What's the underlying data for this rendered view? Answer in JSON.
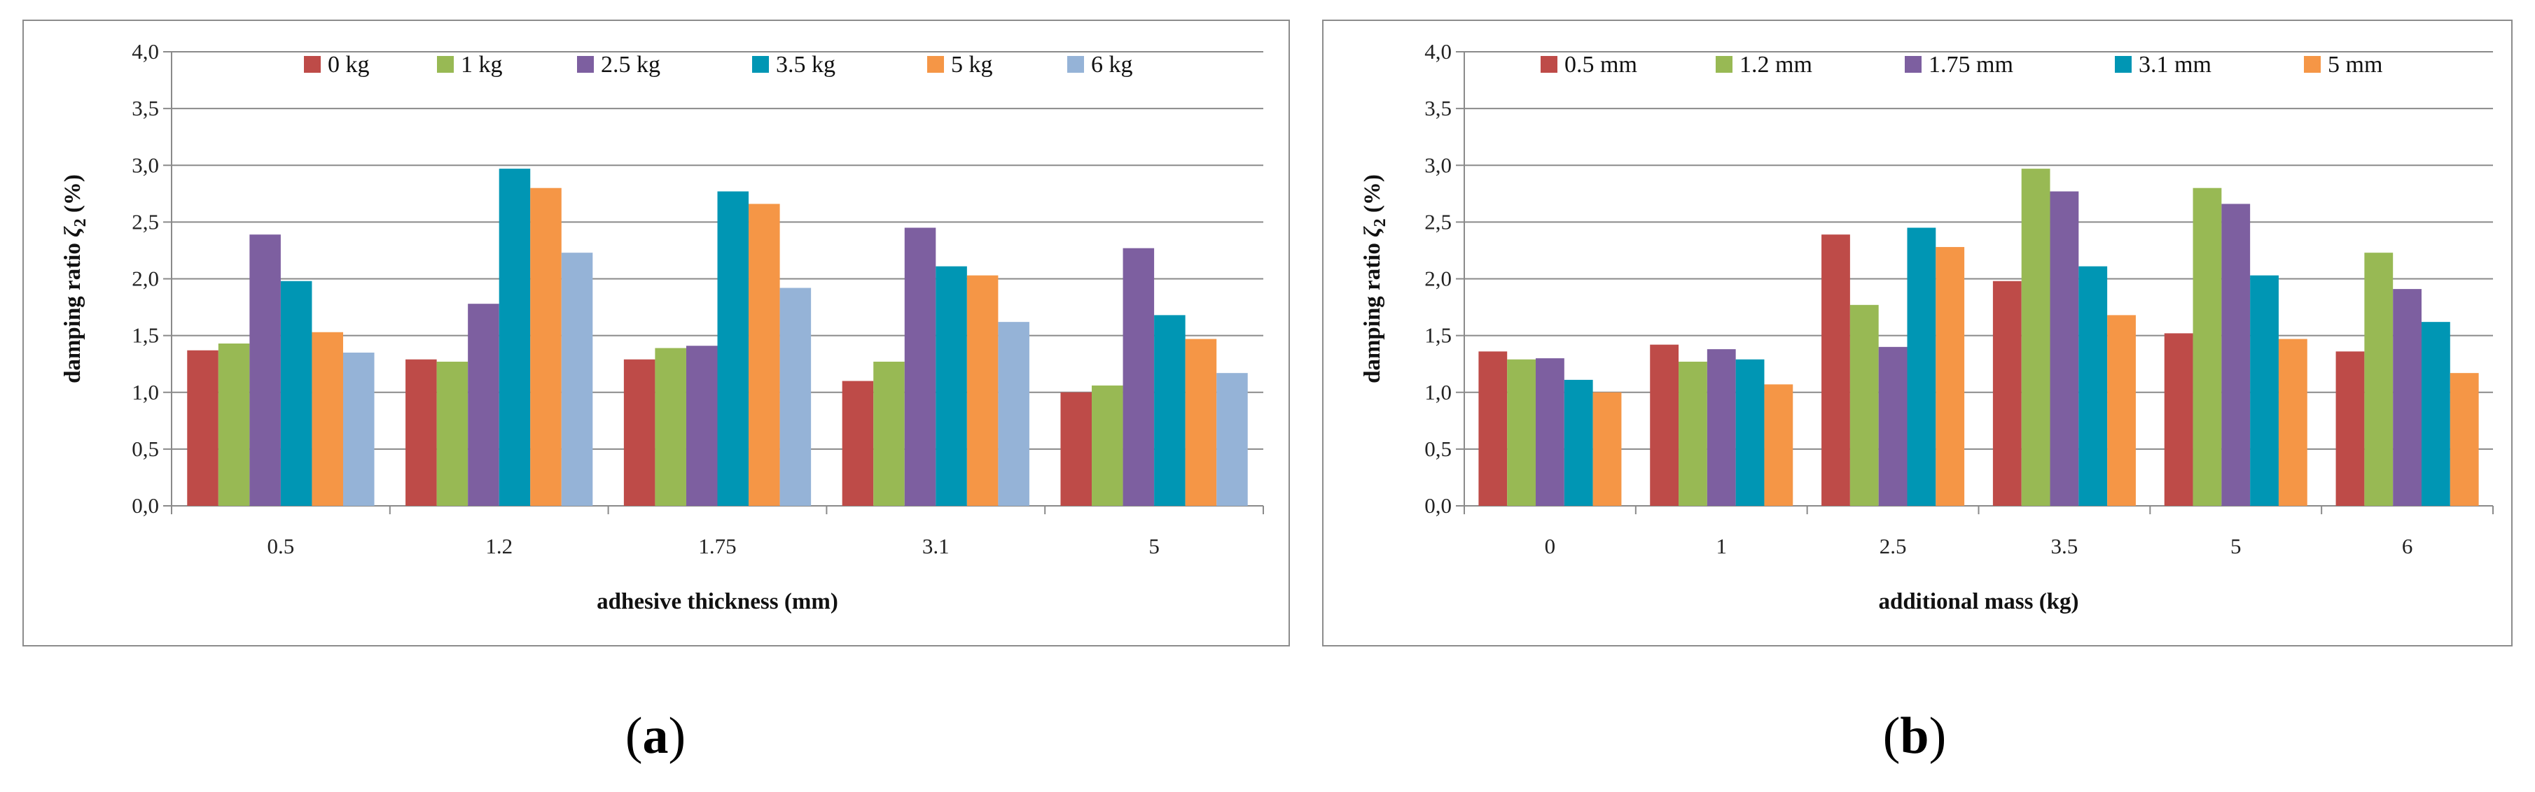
{
  "chart_data": [
    {
      "type": "bar",
      "panel": "a",
      "title": "",
      "xlabel": "adhesive thickness (mm)",
      "ylabel": "damping ratio ζ2 (%)",
      "ylabel_main": "damping ratio ",
      "ylabel_symbol": "ζ",
      "ylabel_sub": "2",
      "ylabel_unit": " (%)",
      "ylim": [
        0,
        4.0
      ],
      "yticks": [
        "0,0",
        "0,5",
        "1,0",
        "1,5",
        "2,0",
        "2,5",
        "3,0",
        "3,5",
        "4,0"
      ],
      "categories": [
        "0.5",
        "1.2",
        "1.75",
        "3.1",
        "5"
      ],
      "legend_position": "top",
      "series": [
        {
          "name": "0 kg",
          "color": "#BE4B48",
          "values": [
            1.37,
            1.29,
            1.29,
            1.1,
            1.0
          ]
        },
        {
          "name": "1 kg",
          "color": "#98B954",
          "values": [
            1.43,
            1.27,
            1.39,
            1.27,
            1.06
          ]
        },
        {
          "name": "2.5 kg",
          "color": "#7D5FA0",
          "values": [
            2.39,
            1.78,
            1.41,
            2.45,
            2.27
          ]
        },
        {
          "name": "3.5 kg",
          "color": "#0096B4",
          "values": [
            1.98,
            2.97,
            2.77,
            2.11,
            1.68
          ]
        },
        {
          "name": "5 kg",
          "color": "#F59646",
          "values": [
            1.53,
            2.8,
            2.66,
            2.03,
            1.47
          ]
        },
        {
          "name": "6 kg",
          "color": "#95B3D7",
          "values": [
            1.35,
            2.23,
            1.92,
            1.62,
            1.17
          ]
        }
      ]
    },
    {
      "type": "bar",
      "panel": "b",
      "title": "",
      "xlabel": "additional mass (kg)",
      "ylabel": "damping ratio ζ2 (%)",
      "ylabel_main": "damping ratio ",
      "ylabel_symbol": "ζ",
      "ylabel_sub": "2",
      "ylabel_unit": " (%)",
      "ylim": [
        0,
        4.0
      ],
      "yticks": [
        "0,0",
        "0,5",
        "1,0",
        "1,5",
        "2,0",
        "2,5",
        "3,0",
        "3,5",
        "4,0"
      ],
      "categories": [
        "0",
        "1",
        "2.5",
        "3.5",
        "5",
        "6"
      ],
      "legend_position": "top",
      "series": [
        {
          "name": "0.5 mm",
          "color": "#BE4B48",
          "values": [
            1.36,
            1.42,
            2.39,
            1.98,
            1.52,
            1.36
          ]
        },
        {
          "name": "1.2 mm",
          "color": "#98B954",
          "values": [
            1.29,
            1.27,
            1.77,
            2.97,
            2.8,
            2.23
          ]
        },
        {
          "name": "1.75 mm",
          "color": "#7D5FA0",
          "values": [
            1.3,
            1.38,
            1.4,
            2.77,
            2.66,
            1.91
          ]
        },
        {
          "name": "3.1 mm",
          "color": "#0096B4",
          "values": [
            1.11,
            1.29,
            2.45,
            2.11,
            2.03,
            1.62
          ]
        },
        {
          "name": "5 mm",
          "color": "#F59646",
          "values": [
            1.0,
            1.07,
            2.28,
            1.68,
            1.47,
            1.17
          ]
        }
      ]
    }
  ],
  "captions": [
    {
      "open": "(",
      "letter": "a",
      "close": ")"
    },
    {
      "open": "(",
      "letter": "b",
      "close": ")"
    }
  ]
}
